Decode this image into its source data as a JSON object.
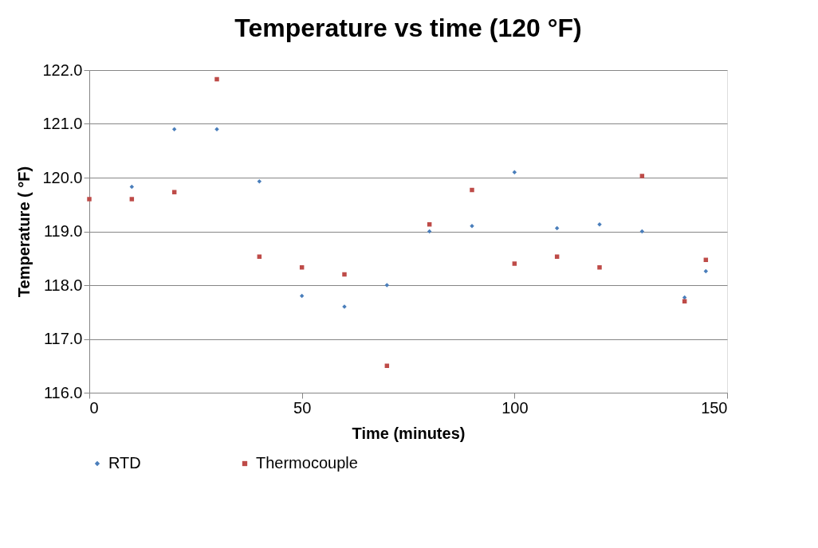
{
  "chart_data": {
    "type": "scatter",
    "title": "Temperature vs time (120 °F)",
    "xlabel": "Time (minutes)",
    "ylabel": "Temperature ( °F)",
    "x": [
      0,
      10,
      20,
      30,
      40,
      50,
      60,
      70,
      80,
      90,
      100,
      110,
      120,
      130,
      140,
      145
    ],
    "series": [
      {
        "name": "RTD",
        "color": "#4a7ebb",
        "marker": "diamond",
        "values": [
          null,
          119.83,
          120.9,
          120.9,
          119.93,
          117.8,
          117.6,
          118.0,
          119.0,
          119.1,
          120.1,
          119.06,
          119.13,
          119.0,
          117.77,
          118.26
        ]
      },
      {
        "name": "Thermocouple",
        "color": "#be4b48",
        "marker": "square",
        "values": [
          119.6,
          119.6,
          119.73,
          121.83,
          118.53,
          118.33,
          118.2,
          116.5,
          119.13,
          119.77,
          118.4,
          118.53,
          118.33,
          120.03,
          117.7,
          118.47
        ]
      }
    ],
    "xlim": [
      0,
      150
    ],
    "xticks": [
      0,
      50,
      100,
      150
    ],
    "ylim": [
      116,
      122
    ],
    "yticks": [
      {
        "value": 116,
        "label": "116.0"
      },
      {
        "value": 117,
        "label": "117.0"
      },
      {
        "value": 118,
        "label": "118.0"
      },
      {
        "value": 119,
        "label": "119.0"
      },
      {
        "value": 120,
        "label": "120.0"
      },
      {
        "value": 121,
        "label": "121.0"
      },
      {
        "value": 122,
        "label": "122.0"
      }
    ],
    "grid": "y",
    "legend": "bottom"
  }
}
